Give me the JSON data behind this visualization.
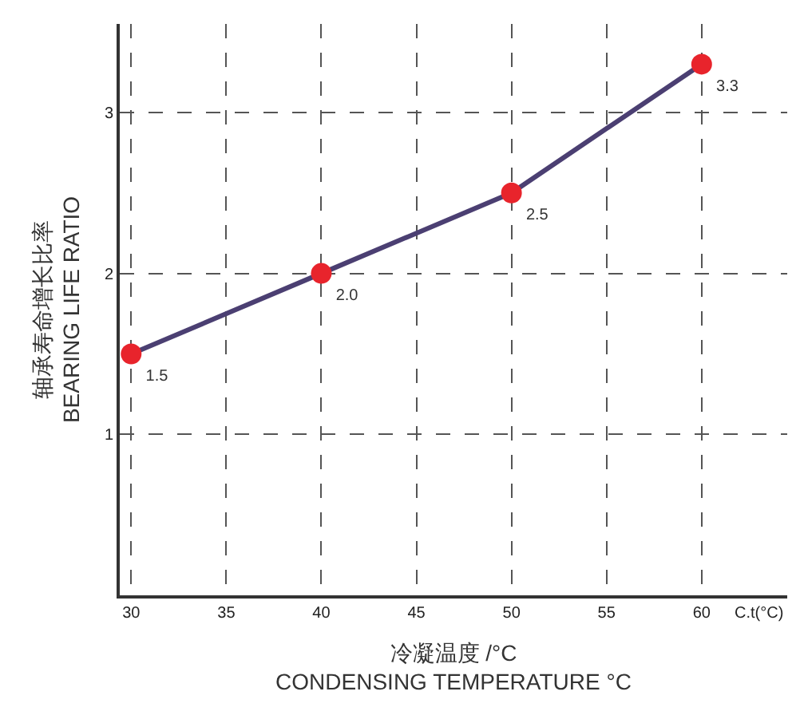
{
  "chart_data": {
    "type": "line",
    "xlabel": "冷凝温度 /°C\nCONDENSING TEMPERATURE °C",
    "ylabel": "轴承寿命增长比率\nBEARING LIFE RATIO",
    "x": [
      30,
      40,
      50,
      60
    ],
    "series": [
      {
        "color": "#4b3f72",
        "values": [
          1.5,
          2.0,
          2.5,
          3.3
        ],
        "value_labels": [
          "1.5",
          "2.0",
          "2.5",
          "3.3"
        ]
      }
    ],
    "xlim": [
      29.4,
      64.5
    ],
    "xticks": [
      30,
      35,
      40,
      45,
      50,
      55,
      60
    ],
    "ylim": [
      0,
      3.55
    ],
    "yticks": [
      1,
      2,
      3
    ],
    "annotations": [
      "C.t(°C)"
    ],
    "grid": true,
    "marker": "circle",
    "legend": false
  }
}
